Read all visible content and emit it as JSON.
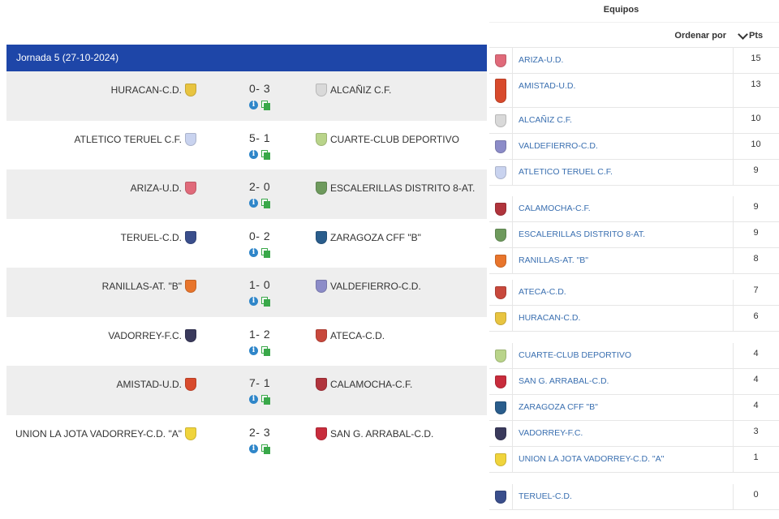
{
  "jornada": {
    "title": "Jornada 5 (27-10-2024)"
  },
  "matches": [
    {
      "home": "HURACAN-C.D.",
      "score": "0- 3",
      "away": "ALCAÑIZ C.F.",
      "home_color": "#e8c440",
      "away_color": "#d9d9d9"
    },
    {
      "home": "ATLETICO TERUEL C.F.",
      "score": "5- 1",
      "away": "CUARTE-CLUB DEPORTIVO",
      "home_color": "#c9d3ef",
      "away_color": "#b9d48a"
    },
    {
      "home": "ARIZA-U.D.",
      "score": "2- 0",
      "away": "ESCALERILLAS DISTRITO 8-AT.",
      "home_color": "#e06a7a",
      "away_color": "#6e9a5d"
    },
    {
      "home": "TERUEL-C.D.",
      "score": "0- 2",
      "away": "ZARAGOZA CFF \"B\"",
      "home_color": "#3a4e8c",
      "away_color": "#2a5d8c"
    },
    {
      "home": "RANILLAS-AT. \"B\"",
      "score": "1- 0",
      "away": "VALDEFIERRO-C.D.",
      "home_color": "#e8752c",
      "away_color": "#8c8cc8"
    },
    {
      "home": "VADORREY-F.C.",
      "score": "1- 2",
      "away": "ATECA-C.D.",
      "home_color": "#3a3a5c",
      "away_color": "#c8483c"
    },
    {
      "home": "AMISTAD-U.D.",
      "score": "7- 1",
      "away": "CALAMOCHA-C.F.",
      "home_color": "#d84a2c",
      "away_color": "#b0343c"
    },
    {
      "home": "UNION LA JOTA VADORREY-C.D. \"A\"",
      "score": "2- 3",
      "away": "SAN G. ARRABAL-C.D.",
      "home_color": "#f0d43c",
      "away_color": "#c82c3c"
    }
  ],
  "standings": {
    "title": "Equipos",
    "sort_label": "Ordenar por",
    "pts_label": "Pts",
    "teams": [
      {
        "name": "ARIZA-U.D.",
        "pts": "15",
        "color": "#e06a7a"
      },
      {
        "name": "AMISTAD-U.D.",
        "pts": "13",
        "color": "#d84a2c"
      },
      {
        "name": "ALCAÑIZ C.F.",
        "pts": "10",
        "color": "#d9d9d9"
      },
      {
        "name": "VALDEFIERRO-C.D.",
        "pts": "10",
        "color": "#8c8cc8"
      },
      {
        "name": "ATLETICO TERUEL C.F.",
        "pts": "9",
        "color": "#c9d3ef"
      },
      {
        "name": "CALAMOCHA-C.F.",
        "pts": "9",
        "color": "#b0343c"
      },
      {
        "name": "ESCALERILLAS DISTRITO 8-AT.",
        "pts": "9",
        "color": "#6e9a5d"
      },
      {
        "name": "RANILLAS-AT. \"B\"",
        "pts": "8",
        "color": "#e8752c"
      },
      {
        "name": "ATECA-C.D.",
        "pts": "7",
        "color": "#c8483c"
      },
      {
        "name": "HURACAN-C.D.",
        "pts": "6",
        "color": "#e8c440"
      },
      {
        "name": "CUARTE-CLUB DEPORTIVO",
        "pts": "4",
        "color": "#b9d48a"
      },
      {
        "name": "SAN G. ARRABAL-C.D.",
        "pts": "4",
        "color": "#c82c3c"
      },
      {
        "name": "ZARAGOZA CFF \"B\"",
        "pts": "4",
        "color": "#2a5d8c"
      },
      {
        "name": "VADORREY-F.C.",
        "pts": "3",
        "color": "#3a3a5c"
      },
      {
        "name": "UNION LA JOTA VADORREY-C.D. \"A\"",
        "pts": "1",
        "color": "#f0d43c"
      },
      {
        "name": "TERUEL-C.D.",
        "pts": "0",
        "color": "#3a4e8c"
      }
    ]
  }
}
